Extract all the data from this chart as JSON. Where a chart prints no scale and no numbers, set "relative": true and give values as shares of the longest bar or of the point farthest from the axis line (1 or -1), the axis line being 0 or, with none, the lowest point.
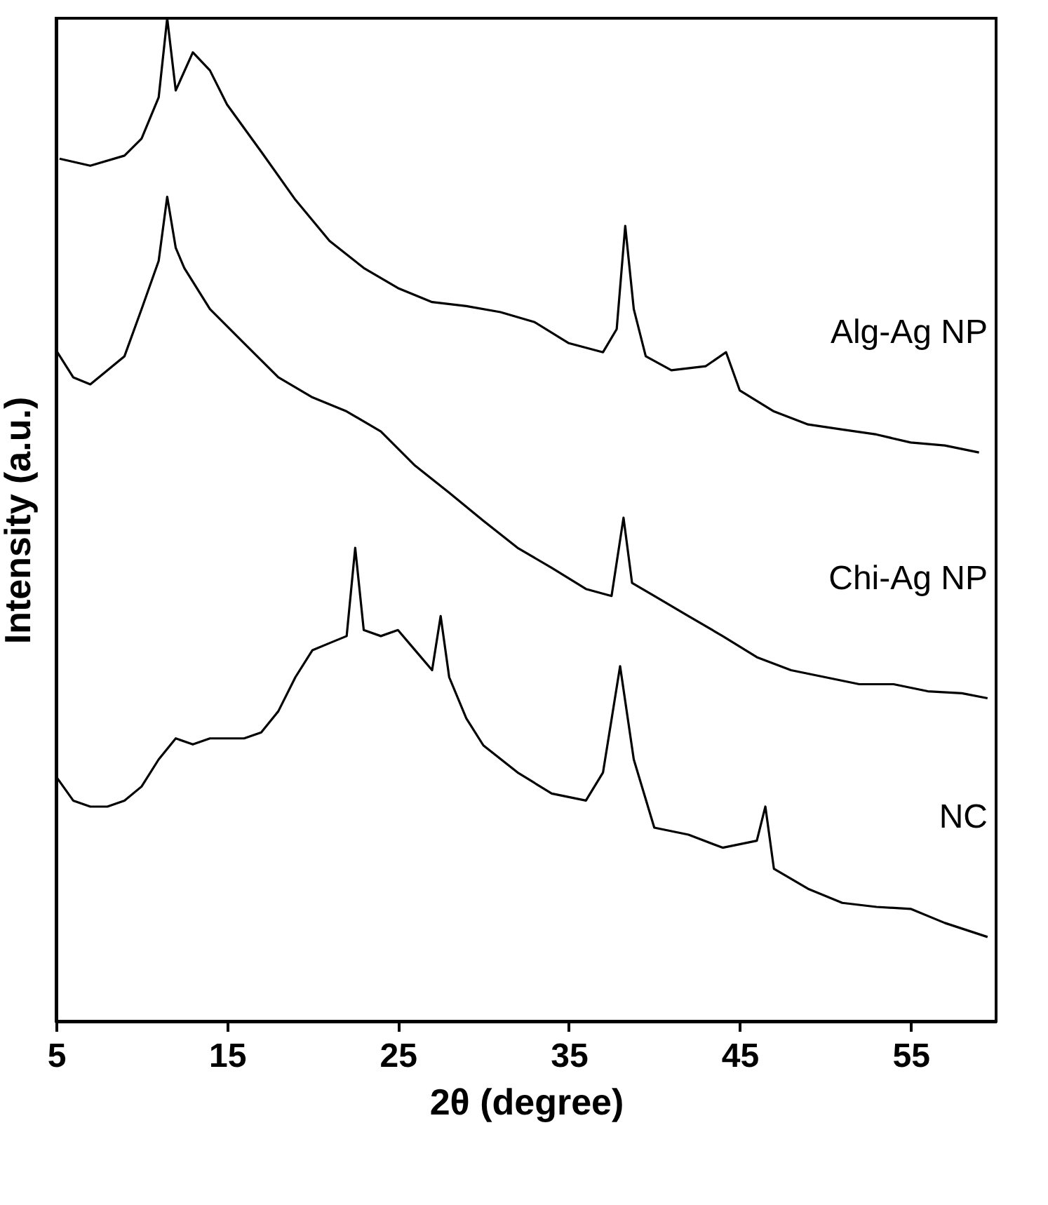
{
  "chart_data": {
    "type": "line",
    "relative": true,
    "xlabel": "2θ (degree)",
    "ylabel": "Intensity (a.u.)",
    "xlim": [
      5,
      60
    ],
    "xticks": [
      5,
      15,
      25,
      35,
      45,
      55
    ],
    "grid": false,
    "marker": "none",
    "line_style": "solid",
    "series": [
      {
        "name": "Alg-Ag NP",
        "color": "#000000",
        "x": [
          5.2,
          7,
          9,
          10,
          11,
          11.5,
          12,
          13,
          14,
          15,
          17,
          19,
          21,
          23,
          25,
          27,
          29,
          31,
          33,
          35,
          37,
          37.8,
          38.3,
          38.8,
          39.5,
          41,
          43,
          44.2,
          45,
          47,
          49,
          51,
          53,
          55,
          57,
          59
        ],
        "values": [
          0.86,
          0.853,
          0.863,
          0.88,
          0.921,
          1.0,
          0.928,
          0.966,
          0.948,
          0.914,
          0.867,
          0.819,
          0.778,
          0.751,
          0.731,
          0.717,
          0.713,
          0.707,
          0.697,
          0.676,
          0.667,
          0.69,
          0.793,
          0.71,
          0.663,
          0.649,
          0.653,
          0.667,
          0.629,
          0.608,
          0.595,
          0.59,
          0.585,
          0.577,
          0.574,
          0.567
        ]
      },
      {
        "name": "Chi-Ag NP",
        "color": "#000000",
        "x": [
          5,
          6,
          7,
          8,
          9,
          10,
          11,
          11.5,
          12,
          12.5,
          14,
          16,
          18,
          20,
          22,
          24,
          26,
          28,
          30,
          32,
          34,
          36,
          37.5,
          38.2,
          38.7,
          40,
          42,
          44,
          46,
          48,
          50,
          52,
          54,
          56,
          58,
          59.5
        ],
        "values": [
          0.669,
          0.642,
          0.635,
          0.649,
          0.663,
          0.71,
          0.758,
          0.822,
          0.771,
          0.751,
          0.71,
          0.676,
          0.642,
          0.622,
          0.608,
          0.588,
          0.554,
          0.527,
          0.499,
          0.472,
          0.452,
          0.431,
          0.424,
          0.502,
          0.437,
          0.424,
          0.404,
          0.384,
          0.363,
          0.35,
          0.343,
          0.336,
          0.336,
          0.329,
          0.327,
          0.322
        ]
      },
      {
        "name": "NC",
        "color": "#000000",
        "x": [
          5,
          6,
          7,
          8,
          9,
          10,
          11,
          12,
          13,
          14,
          16,
          17,
          18,
          19,
          20,
          21,
          22,
          22.5,
          23,
          24,
          25,
          26,
          27,
          27.5,
          28,
          29,
          30,
          32,
          34,
          36,
          37,
          38,
          38.8,
          40,
          42,
          44,
          46,
          46.5,
          47,
          49,
          51,
          53,
          55,
          57,
          59.5
        ],
        "values": [
          0.244,
          0.22,
          0.214,
          0.214,
          0.22,
          0.234,
          0.261,
          0.282,
          0.276,
          0.282,
          0.282,
          0.288,
          0.309,
          0.343,
          0.37,
          0.377,
          0.384,
          0.472,
          0.39,
          0.384,
          0.39,
          0.37,
          0.35,
          0.404,
          0.343,
          0.302,
          0.275,
          0.248,
          0.227,
          0.22,
          0.248,
          0.354,
          0.261,
          0.193,
          0.186,
          0.173,
          0.18,
          0.214,
          0.152,
          0.132,
          0.118,
          0.114,
          0.112,
          0.098,
          0.084
        ]
      }
    ]
  }
}
